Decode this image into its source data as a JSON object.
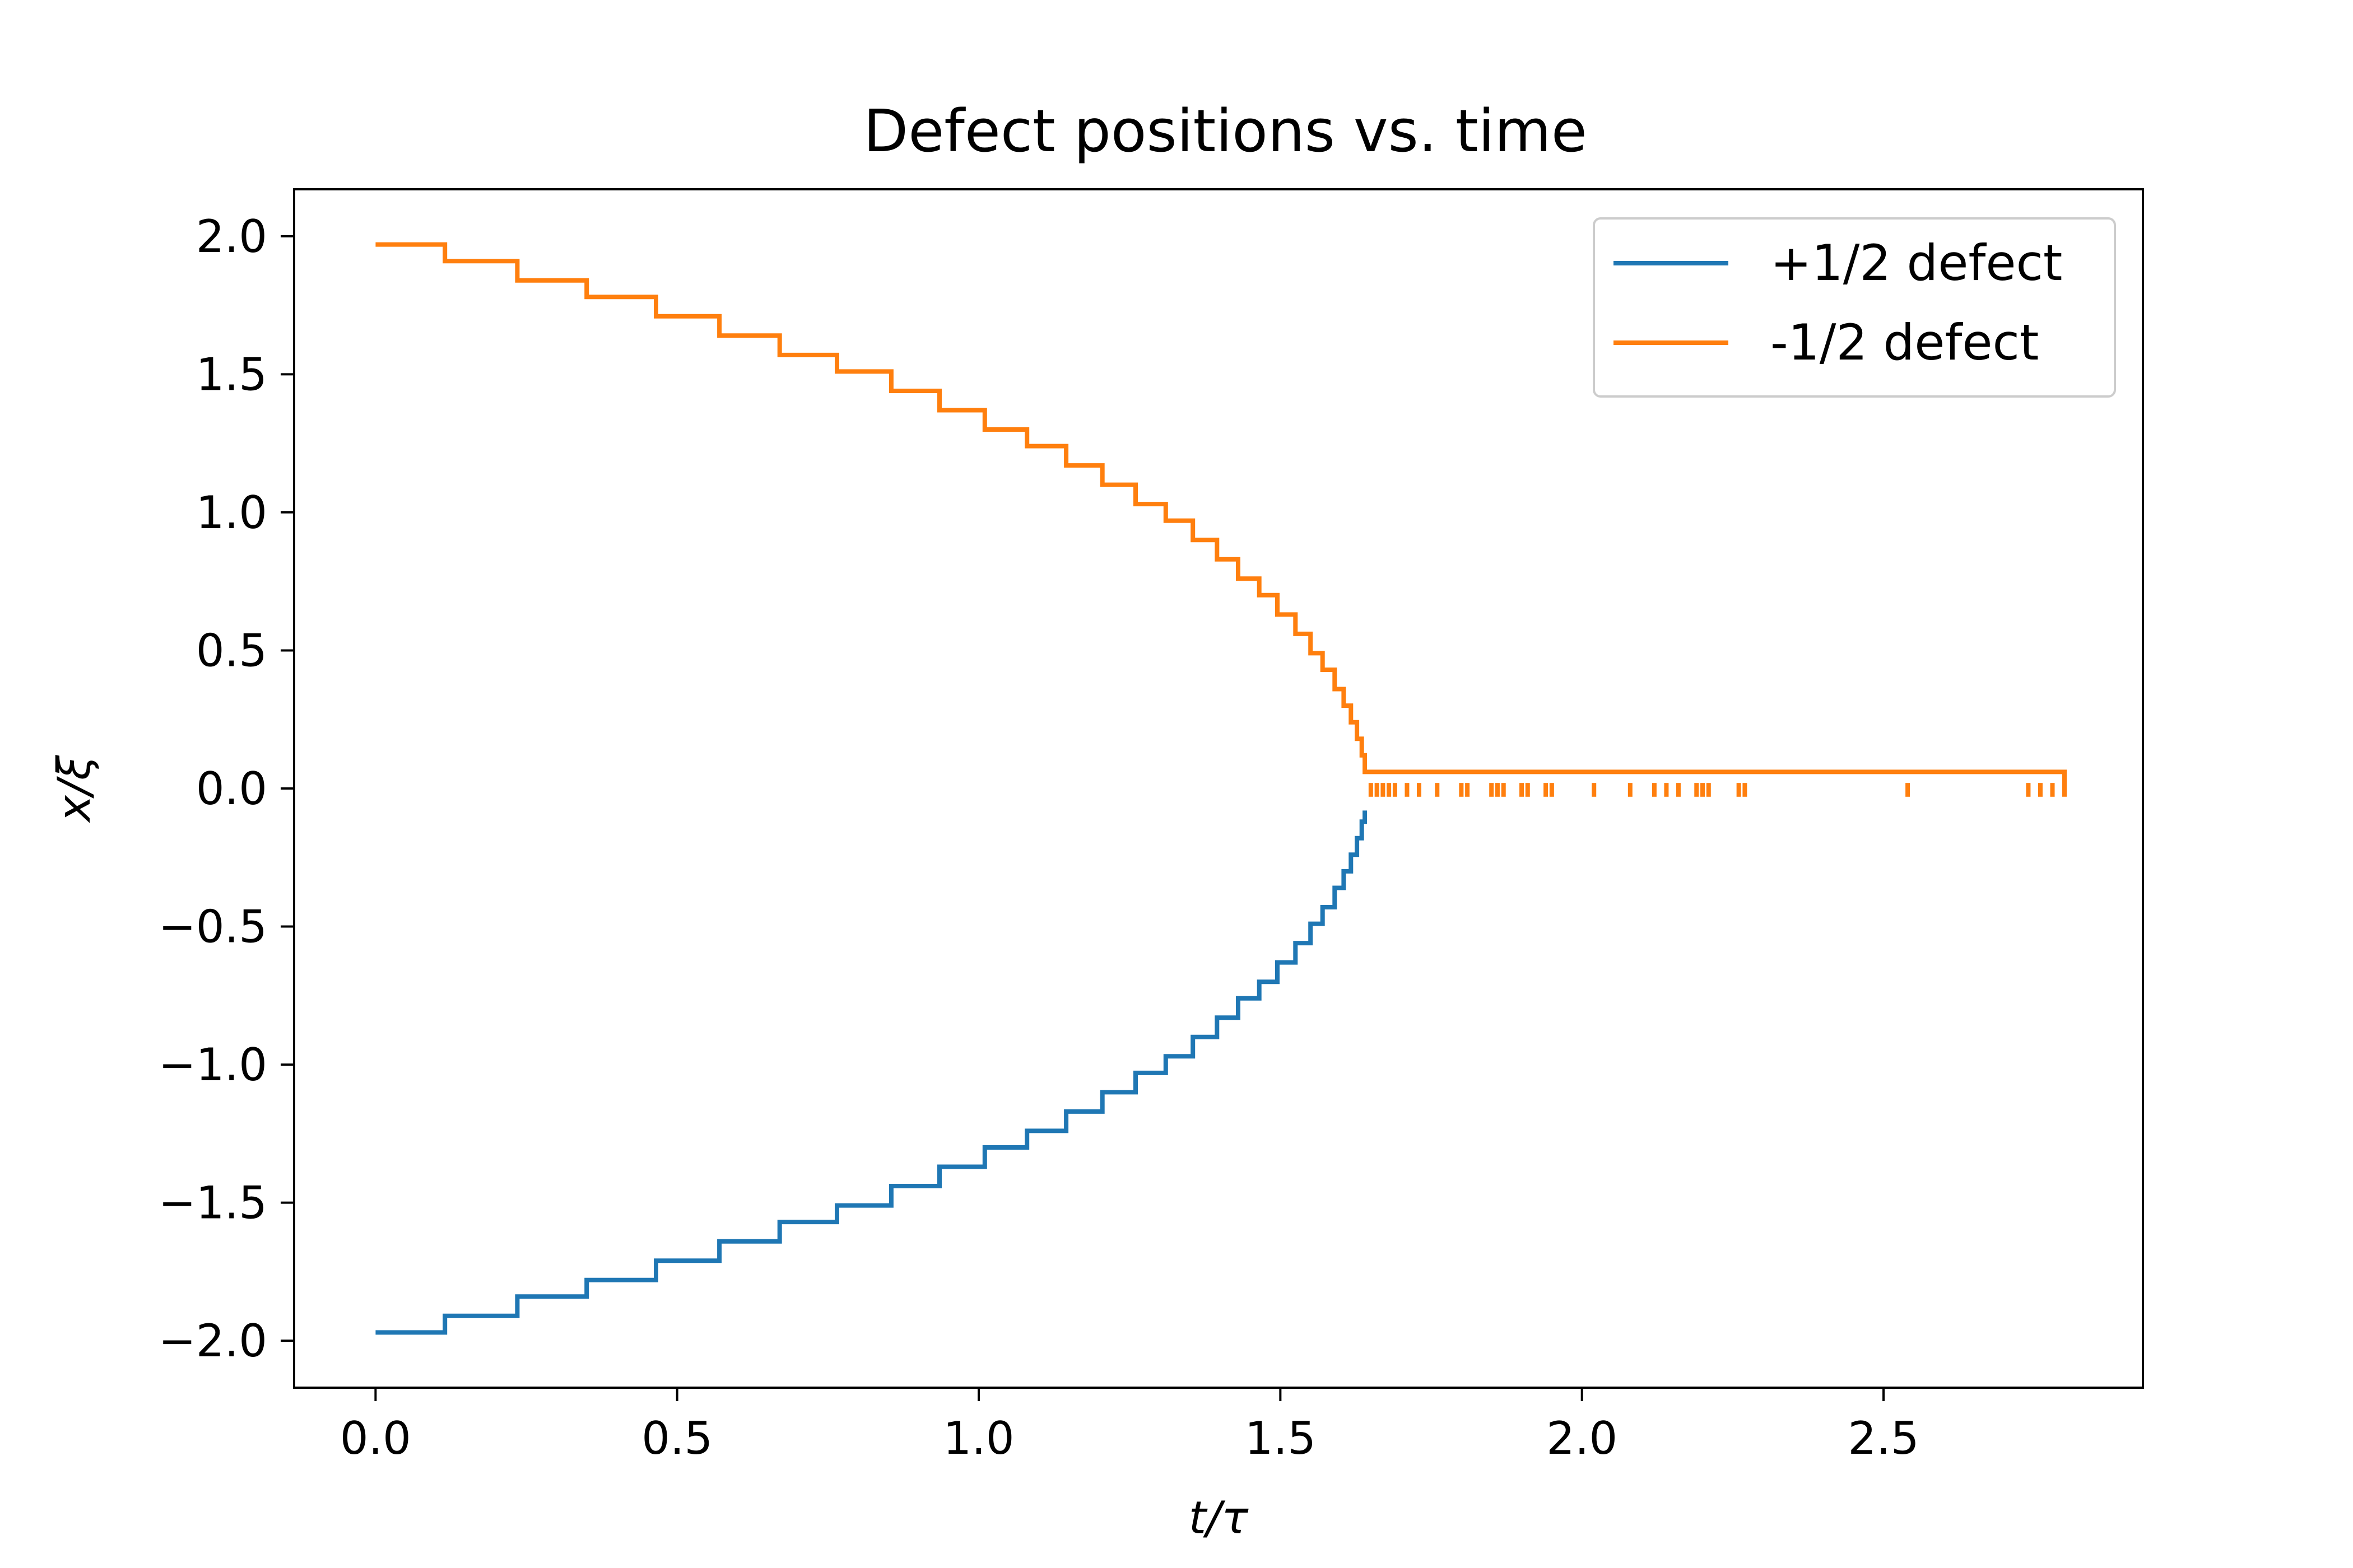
{
  "chart_data": {
    "type": "line",
    "title": "Defect positions vs. time",
    "xlabel": "t/τ",
    "ylabel": "x/ξ",
    "xlim": [
      -0.135,
      2.93
    ],
    "ylim": [
      -2.17,
      2.17
    ],
    "xticks": [
      0.0,
      0.5,
      1.0,
      1.5,
      2.0,
      2.5
    ],
    "xtick_labels": [
      "0.0",
      "0.5",
      "1.0",
      "1.5",
      "2.0",
      "2.5"
    ],
    "yticks": [
      2.0,
      1.5,
      1.0,
      0.5,
      0.0,
      -0.5,
      -1.0,
      -1.5,
      -2.0
    ],
    "ytick_labels": [
      "2.0",
      "1.5",
      "1.0",
      "0.5",
      "0.0",
      "−0.5",
      "−1.0",
      "−1.5",
      "−2.0"
    ],
    "grid": false,
    "legend_position": "top-right",
    "step": true,
    "series": [
      {
        "name": "+1/2 defect",
        "color": "#1f77b4",
        "x": [
          0.0,
          0.115,
          0.235,
          0.35,
          0.465,
          0.57,
          0.67,
          0.765,
          0.855,
          0.935,
          1.01,
          1.08,
          1.145,
          1.205,
          1.26,
          1.31,
          1.355,
          1.395,
          1.43,
          1.465,
          1.495,
          1.525,
          1.55,
          1.57,
          1.59,
          1.605,
          1.617,
          1.627,
          1.635,
          1.64
        ],
        "y": [
          -1.97,
          -1.91,
          -1.84,
          -1.78,
          -1.71,
          -1.64,
          -1.57,
          -1.51,
          -1.44,
          -1.37,
          -1.3,
          -1.24,
          -1.17,
          -1.1,
          -1.03,
          -0.97,
          -0.9,
          -0.83,
          -0.76,
          -0.7,
          -0.63,
          -0.56,
          -0.49,
          -0.43,
          -0.36,
          -0.3,
          -0.24,
          -0.18,
          -0.12,
          -0.08
        ]
      },
      {
        "name": "-1/2 defect",
        "color": "#ff7f0e",
        "x": [
          0.0,
          0.115,
          0.235,
          0.35,
          0.465,
          0.57,
          0.67,
          0.765,
          0.855,
          0.935,
          1.01,
          1.08,
          1.145,
          1.205,
          1.26,
          1.31,
          1.355,
          1.395,
          1.43,
          1.465,
          1.495,
          1.525,
          1.55,
          1.57,
          1.59,
          1.605,
          1.617,
          1.627,
          1.635,
          1.64,
          2.8
        ],
        "y": [
          1.97,
          1.91,
          1.84,
          1.78,
          1.71,
          1.64,
          1.57,
          1.51,
          1.44,
          1.37,
          1.3,
          1.24,
          1.17,
          1.1,
          1.03,
          0.97,
          0.9,
          0.83,
          0.76,
          0.7,
          0.63,
          0.56,
          0.49,
          0.43,
          0.36,
          0.3,
          0.24,
          0.18,
          0.12,
          0.06,
          -0.03
        ],
        "spikes": {
          "y_top": 0.02,
          "x": [
            1.65,
            1.66,
            1.67,
            1.68,
            1.69,
            1.71,
            1.73,
            1.76,
            1.8,
            1.81,
            1.85,
            1.86,
            1.87,
            1.9,
            1.91,
            1.94,
            1.95,
            2.02,
            2.08,
            2.12,
            2.14,
            2.16,
            2.19,
            2.2,
            2.21,
            2.26,
            2.27,
            2.54,
            2.74,
            2.76,
            2.78
          ]
        }
      }
    ]
  }
}
